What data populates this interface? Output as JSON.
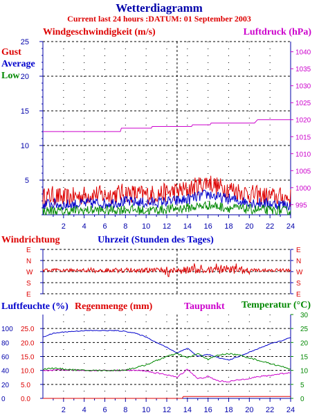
{
  "title": "Wetterdiagramm",
  "subtitle": "Current last 24 hours :DATUM: 01 September 2003",
  "colors": {
    "red": "#dd0000",
    "blue": "#0000cc",
    "green": "#008800",
    "magenta": "#cc00cc",
    "grid": "#000000",
    "axis": "#0000aa"
  },
  "chart_data": [
    {
      "type": "line",
      "name": "wind",
      "title": "Windgeschwindigkeit (m/s)",
      "ylabel": "Windgeschwindigkeit (m/s)",
      "ylim": [
        0,
        25
      ],
      "y_ticks": [
        5,
        10,
        15,
        20,
        25
      ],
      "y2label": "Luftdruck (hPa)",
      "y2lim": [
        992,
        1043
      ],
      "y2_ticks": [
        995,
        1000,
        1005,
        1010,
        1015,
        1020,
        1025,
        1030,
        1035,
        1040
      ],
      "xlim": [
        0,
        24
      ],
      "x_ticks": [
        2,
        4,
        6,
        8,
        10,
        12,
        14,
        16,
        18,
        20,
        22,
        24
      ],
      "legend": [
        "Gust",
        "Average",
        "Low"
      ],
      "grid": true,
      "series": [
        {
          "name": "Gust",
          "color": "#dd0000",
          "x": [
            0,
            1,
            2,
            3,
            4,
            5,
            6,
            7,
            8,
            9,
            10,
            11,
            12,
            13,
            14,
            15,
            16,
            17,
            18,
            19,
            20,
            21,
            22,
            23,
            24
          ],
          "values": [
            2.5,
            2.8,
            2.4,
            2.6,
            2.8,
            3,
            2.8,
            3,
            3.2,
            3,
            2.9,
            3,
            3.2,
            3.4,
            3.6,
            4.2,
            4.8,
            4,
            3.8,
            3.4,
            3,
            2.8,
            2.6,
            2.6,
            2.4
          ]
        },
        {
          "name": "Average",
          "color": "#0000cc",
          "x": [
            0,
            1,
            2,
            3,
            4,
            5,
            6,
            7,
            8,
            9,
            10,
            11,
            12,
            13,
            14,
            15,
            16,
            17,
            18,
            19,
            20,
            21,
            22,
            23,
            24
          ],
          "values": [
            1.5,
            1.6,
            1.4,
            1.5,
            1.6,
            1.7,
            1.6,
            1.8,
            1.9,
            1.8,
            1.7,
            1.8,
            1.9,
            2,
            2.2,
            2.6,
            3,
            2.5,
            2.3,
            2,
            1.8,
            1.7,
            1.6,
            1.5,
            1.4
          ]
        },
        {
          "name": "Low",
          "color": "#008800",
          "x": [
            0,
            1,
            2,
            3,
            4,
            5,
            6,
            7,
            8,
            9,
            10,
            11,
            12,
            13,
            14,
            15,
            16,
            17,
            18,
            19,
            20,
            21,
            22,
            23,
            24
          ],
          "values": [
            0.5,
            0.6,
            0.4,
            0.6,
            0.6,
            0.7,
            0.6,
            0.7,
            0.8,
            0.7,
            0.6,
            0.7,
            0.8,
            0.9,
            1,
            1.2,
            1.4,
            1.2,
            1,
            0.9,
            0.8,
            0.7,
            0.6,
            0.6,
            0.5
          ]
        },
        {
          "name": "Luftdruck",
          "axis": "right",
          "color": "#cc00cc",
          "x": [
            0,
            2.6,
            4.7,
            7.5,
            7.6,
            10.5,
            10.6,
            14.4,
            14.5,
            16.2,
            16.3,
            20.3,
            20.5,
            20.8,
            21.2,
            24
          ],
          "values": [
            1016.5,
            1016.5,
            1016.5,
            1016.5,
            1017.5,
            1017.5,
            1018,
            1018,
            1018.5,
            1018.5,
            1019,
            1019,
            1019,
            1020,
            1020,
            1020
          ]
        }
      ]
    },
    {
      "type": "line",
      "name": "winddirection",
      "title": "Windrichtung",
      "xlabel": "Uhrzeit (Stunden des Tages)",
      "y_categories": [
        "E",
        "N",
        "W",
        "S",
        "E"
      ],
      "xlim": [
        0,
        24
      ],
      "grid": true,
      "series": [
        {
          "name": "Windrichtung",
          "color": "#dd0000",
          "x": [
            0,
            2,
            4,
            6,
            8,
            10,
            12,
            13,
            14,
            16,
            18,
            20,
            22,
            24
          ],
          "values": [
            "W",
            "W",
            "W",
            "W",
            "W",
            "W",
            "W",
            "W",
            "W",
            "W",
            "W",
            "W",
            "W",
            "W"
          ]
        }
      ]
    },
    {
      "type": "line",
      "name": "humidity",
      "title": "Luftfeuchte (%), Regenmenge (mm), Taupunkt, Temperatur (°C)",
      "ylabel": "Luftfeuchte (%)",
      "ylim": [
        0,
        120
      ],
      "y_ticks": [
        0,
        20,
        40,
        60,
        80,
        100
      ],
      "ylabel_rain": "Regenmenge (mm)",
      "rain_ticks": [
        "0.0",
        "5.0",
        "10.0",
        "15.0",
        "20.0",
        "25.0"
      ],
      "y2label": "Temperatur (°C)",
      "y2lim": [
        0,
        30
      ],
      "y2_ticks": [
        0,
        5,
        10,
        15,
        20,
        25,
        30
      ],
      "xlim": [
        0,
        24
      ],
      "x_ticks": [
        2,
        4,
        6,
        8,
        10,
        12,
        14,
        16,
        18,
        20,
        22,
        24
      ],
      "legend": [
        "Taupunkt",
        "Temperatur (°C)"
      ],
      "grid": true,
      "series": [
        {
          "name": "Luftfeuchte",
          "color": "#0000cc",
          "x": [
            0,
            1,
            2,
            3,
            4,
            5,
            6,
            7,
            8,
            9,
            10,
            11,
            12,
            13,
            14,
            15,
            16,
            17,
            18,
            19,
            20,
            21,
            22,
            23,
            24
          ],
          "values": [
            88,
            93,
            95,
            96,
            97,
            97,
            97,
            97,
            96,
            93,
            88,
            80,
            73,
            65,
            72,
            60,
            63,
            58,
            55,
            60,
            66,
            72,
            78,
            82,
            87
          ]
        },
        {
          "name": "Regenmenge",
          "color": "#dd0000",
          "x": [
            0,
            13.5,
            13.6,
            24
          ],
          "values": [
            0,
            0,
            0.7,
            0.7
          ]
        },
        {
          "name": "Taupunkt",
          "color": "#cc00cc",
          "x": [
            0,
            1,
            2,
            3,
            4,
            5,
            6,
            7,
            8,
            9,
            10,
            11,
            12,
            13,
            14,
            15,
            16,
            17,
            18,
            19,
            20,
            21,
            22,
            23,
            24
          ],
          "values": [
            9.8,
            10,
            10.2,
            10.1,
            10,
            10,
            10,
            10,
            10.1,
            10,
            9.8,
            9,
            8.5,
            7.5,
            10.5,
            7,
            7.8,
            6.2,
            6,
            6.6,
            7.2,
            7.8,
            8.2,
            8.8,
            9.2
          ]
        },
        {
          "name": "Temperatur",
          "color": "#008800",
          "x": [
            0,
            1,
            2,
            3,
            4,
            5,
            6,
            7,
            8,
            9,
            10,
            11,
            12,
            13,
            14,
            15,
            16,
            17,
            18,
            19,
            20,
            21,
            22,
            23,
            24
          ],
          "values": [
            10.5,
            10.8,
            10.5,
            10.2,
            10,
            10,
            10,
            10,
            10.2,
            11,
            12,
            13.5,
            15,
            16,
            14.5,
            16,
            14,
            15.5,
            16,
            15.5,
            14.5,
            13.5,
            12.5,
            11.5,
            10.5
          ]
        }
      ]
    }
  ]
}
